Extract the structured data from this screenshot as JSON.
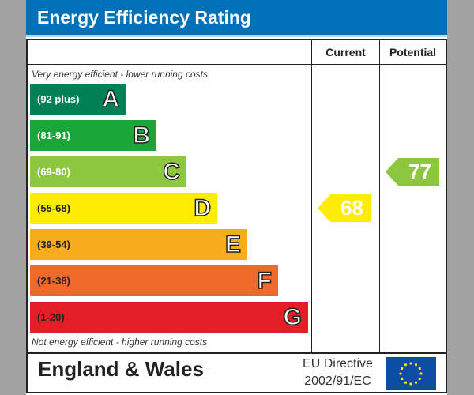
{
  "title": "Energy Efficiency Rating",
  "columns": {
    "current": "Current",
    "potential": "Potential"
  },
  "top_note": "Very energy efficient - lower running costs",
  "bottom_note": "Not energy efficient - higher running costs",
  "footer": {
    "region": "England & Wales",
    "directive_line1": "EU Directive",
    "directive_line2": "2002/91/EC",
    "flag": "eu-flag-icon"
  },
  "chart_data": {
    "type": "bar",
    "bands": [
      {
        "range": "(92 plus)",
        "letter": "A",
        "color": "#008054"
      },
      {
        "range": "(81-91)",
        "letter": "B",
        "color": "#19a537"
      },
      {
        "range": "(69-80)",
        "letter": "C",
        "color": "#8dc63f"
      },
      {
        "range": "(55-68)",
        "letter": "D",
        "color": "#ffed00"
      },
      {
        "range": "(39-54)",
        "letter": "E",
        "color": "#f7ac1e"
      },
      {
        "range": "(21-38)",
        "letter": "F",
        "color": "#ed6a2c"
      },
      {
        "range": "(1-20)",
        "letter": "G",
        "color": "#e31e25"
      }
    ],
    "current": {
      "value": 68,
      "color": "#ffed00"
    },
    "potential": {
      "value": 77,
      "color": "#8dc63f"
    }
  }
}
